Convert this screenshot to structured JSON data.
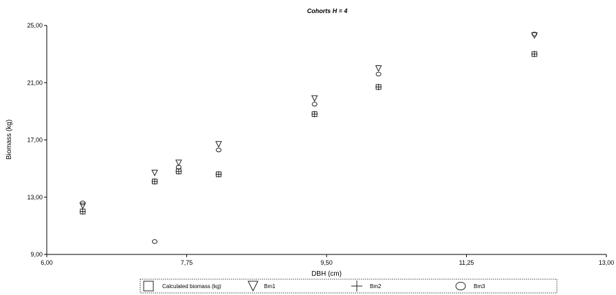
{
  "chart_data": {
    "type": "scatter",
    "title": "Cohorts H = 4",
    "xlabel": "DBH (cm)",
    "ylabel": "Biomass (kg)",
    "xlim": [
      6.0,
      13.0
    ],
    "ylim": [
      9.0,
      25.0
    ],
    "x_ticks": [
      6.0,
      7.75,
      9.5,
      11.25,
      13.0
    ],
    "x_tick_labels": [
      "6,00",
      "7,75",
      "9,50",
      "11,25",
      "13,00"
    ],
    "y_ticks": [
      9.0,
      13.0,
      17.0,
      21.0,
      25.0
    ],
    "y_tick_labels": [
      "9,00",
      "13,00",
      "17,00",
      "21,00",
      "25,00"
    ],
    "grid": false,
    "legend_position": "bottom",
    "series": [
      {
        "name": "Calculated biomass (kg)",
        "marker": "square",
        "x": [
          6.45,
          7.35,
          7.65,
          8.15,
          9.35,
          10.15,
          12.1
        ],
        "y": [
          12.0,
          14.1,
          14.8,
          14.6,
          18.8,
          20.7,
          23.0
        ]
      },
      {
        "name": "Bm1",
        "marker": "triangle-down",
        "x": [
          6.45,
          7.35,
          7.65,
          8.15,
          9.35,
          10.15,
          12.1
        ],
        "y": [
          12.4,
          14.7,
          15.4,
          16.7,
          19.9,
          22.0,
          24.3
        ]
      },
      {
        "name": "Bm2",
        "marker": "plus",
        "x": [
          6.45,
          7.35,
          7.65,
          8.15,
          9.35,
          10.15,
          12.1
        ],
        "y": [
          12.0,
          14.1,
          14.8,
          14.6,
          18.8,
          20.7,
          23.0
        ]
      },
      {
        "name": "Bm3",
        "marker": "circle",
        "x": [
          6.45,
          7.35,
          7.65,
          8.15,
          9.35,
          10.15,
          12.1
        ],
        "y": [
          12.6,
          9.9,
          15.1,
          16.3,
          19.5,
          21.6,
          24.4
        ]
      }
    ]
  }
}
